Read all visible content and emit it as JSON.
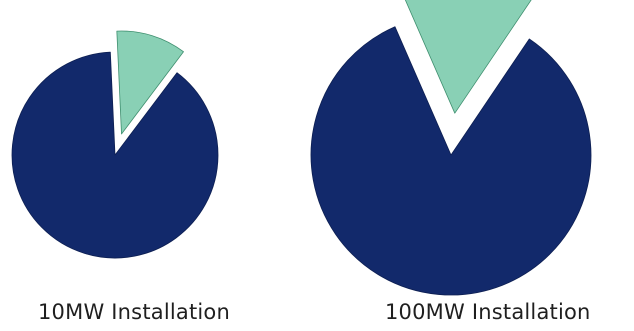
{
  "chart_data": [
    {
      "type": "pie",
      "title": "10MW Installation",
      "slices": [
        {
          "value": 89,
          "color": "#12296b",
          "exploded": false
        },
        {
          "value": 11,
          "color": "#89d0b5",
          "exploded": true
        }
      ]
    },
    {
      "type": "pie",
      "title": "100MW Installation",
      "slices": [
        {
          "value": 84,
          "color": "#12296b",
          "exploded": false
        },
        {
          "value": 16,
          "color": "#89d0b5",
          "exploded": true
        }
      ]
    }
  ]
}
